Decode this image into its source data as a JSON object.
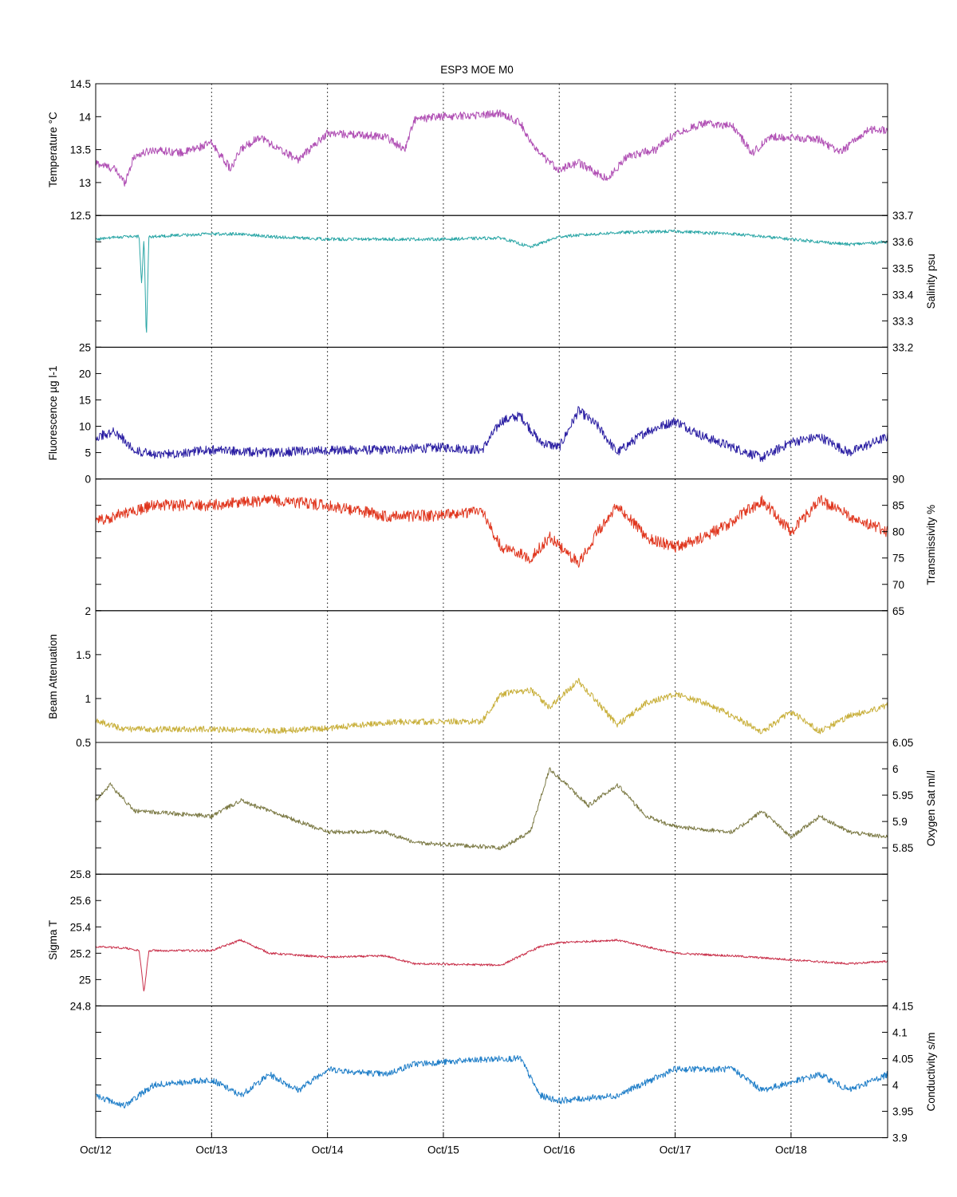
{
  "chart_data": {
    "type": "line",
    "title": "ESP3 MOE   M0",
    "x": {
      "type": "date",
      "range": [
        "2015-10-12",
        "2015-10-18T20:00"
      ],
      "ticks": [
        "2015-10-12",
        "2015-10-13",
        "2015-10-14",
        "2015-10-15",
        "2015-10-16",
        "2015-10-17",
        "2015-10-18"
      ],
      "tick_labels": [
        "Oct/12",
        "Oct/13",
        "Oct/14",
        "Oct/15",
        "Oct/16",
        "Oct/17",
        "Oct/18"
      ],
      "grid": "vertical dotted at each day"
    },
    "panels": [
      {
        "ylabel": "Temperature °C",
        "axis_side": "left",
        "color": "#b04fb4",
        "ylim": [
          12.5,
          14.5
        ],
        "ytick_values": [
          12.5,
          13,
          13.5,
          14,
          14.5
        ],
        "ytick_labels": [
          "12.5",
          "13",
          "13.5",
          "14",
          "14.5"
        ],
        "noise": 0.06,
        "points": [
          [
            "2015-10-12T00:00",
            13.3
          ],
          [
            "2015-10-12T04:00",
            13.2
          ],
          [
            "2015-10-12T06:00",
            13.0
          ],
          [
            "2015-10-12T08:00",
            13.4
          ],
          [
            "2015-10-12T12:00",
            13.5
          ],
          [
            "2015-10-12T18:00",
            13.45
          ],
          [
            "2015-10-13T00:00",
            13.6
          ],
          [
            "2015-10-13T04:00",
            13.2
          ],
          [
            "2015-10-13T06:00",
            13.5
          ],
          [
            "2015-10-13T10:00",
            13.7
          ],
          [
            "2015-10-13T14:00",
            13.5
          ],
          [
            "2015-10-13T18:00",
            13.35
          ],
          [
            "2015-10-14T00:00",
            13.75
          ],
          [
            "2015-10-14T12:00",
            13.7
          ],
          [
            "2015-10-14T16:00",
            13.5
          ],
          [
            "2015-10-14T18:00",
            13.95
          ],
          [
            "2015-10-14T23:00",
            14.0
          ],
          [
            "2015-10-15T06:00",
            14.02
          ],
          [
            "2015-10-15T12:00",
            14.05
          ],
          [
            "2015-10-15T16:00",
            13.9
          ],
          [
            "2015-10-15T19:00",
            13.5
          ],
          [
            "2015-10-15T22:00",
            13.3
          ],
          [
            "2015-10-16T00:00",
            13.2
          ],
          [
            "2015-10-16T04:00",
            13.3
          ],
          [
            "2015-10-16T10:00",
            13.05
          ],
          [
            "2015-10-16T14:00",
            13.4
          ],
          [
            "2015-10-16T20:00",
            13.5
          ],
          [
            "2015-10-17T00:00",
            13.75
          ],
          [
            "2015-10-17T06:00",
            13.9
          ],
          [
            "2015-10-17T12:00",
            13.85
          ],
          [
            "2015-10-17T16:00",
            13.45
          ],
          [
            "2015-10-17T20:00",
            13.7
          ],
          [
            "2015-10-18T06:00",
            13.65
          ],
          [
            "2015-10-18T10:00",
            13.45
          ],
          [
            "2015-10-18T16:00",
            13.8
          ],
          [
            "2015-10-18T20:00",
            13.8
          ]
        ]
      },
      {
        "ylabel": "Salinity psu",
        "axis_side": "right",
        "color": "#2aa6a6",
        "ylim": [
          33.2,
          33.7
        ],
        "ytick_values": [
          33.2,
          33.3,
          33.4,
          33.5,
          33.6,
          33.7
        ],
        "ytick_labels": [
          "33.2",
          "33.3",
          "33.4",
          "33.5",
          "33.6",
          "33.7"
        ],
        "noise": 0.006,
        "points": [
          [
            "2015-10-12T00:00",
            33.61
          ],
          [
            "2015-10-12T06:00",
            33.62
          ],
          [
            "2015-10-12T09:00",
            33.62
          ],
          [
            "2015-10-12T09:30",
            33.44
          ],
          [
            "2015-10-12T10:00",
            33.62
          ],
          [
            "2015-10-12T10:30",
            33.22
          ],
          [
            "2015-10-12T11:00",
            33.62
          ],
          [
            "2015-10-12T18:00",
            33.625
          ],
          [
            "2015-10-13T00:00",
            33.63
          ],
          [
            "2015-10-13T06:00",
            33.63
          ],
          [
            "2015-10-13T12:00",
            33.62
          ],
          [
            "2015-10-14T00:00",
            33.61
          ],
          [
            "2015-10-14T12:00",
            33.61
          ],
          [
            "2015-10-15T00:00",
            33.61
          ],
          [
            "2015-10-15T12:00",
            33.615
          ],
          [
            "2015-10-15T18:00",
            33.58
          ],
          [
            "2015-10-16T00:00",
            33.62
          ],
          [
            "2015-10-16T12:00",
            33.635
          ],
          [
            "2015-10-17T00:00",
            33.64
          ],
          [
            "2015-10-17T12:00",
            33.63
          ],
          [
            "2015-10-18T00:00",
            33.61
          ],
          [
            "2015-10-18T12:00",
            33.59
          ],
          [
            "2015-10-18T20:00",
            33.6
          ]
        ]
      },
      {
        "ylabel": "Fluorescence µg l-1",
        "axis_side": "left",
        "color": "#2b1fa3",
        "ylim": [
          0,
          25
        ],
        "ytick_values": [
          0,
          5,
          10,
          15,
          20,
          25
        ],
        "ytick_labels": [
          "0",
          "5",
          "10",
          "15",
          "20",
          "25"
        ],
        "noise": 0.9,
        "points": [
          [
            "2015-10-12T00:00",
            8
          ],
          [
            "2015-10-12T04:00",
            9
          ],
          [
            "2015-10-12T08:00",
            5.5
          ],
          [
            "2015-10-12T12:00",
            4.5
          ],
          [
            "2015-10-13T00:00",
            5.5
          ],
          [
            "2015-10-13T12:00",
            5
          ],
          [
            "2015-10-14T00:00",
            5.5
          ],
          [
            "2015-10-14T12:00",
            5.5
          ],
          [
            "2015-10-15T00:00",
            6
          ],
          [
            "2015-10-15T08:00",
            5.5
          ],
          [
            "2015-10-15T12:00",
            11
          ],
          [
            "2015-10-15T16:00",
            12
          ],
          [
            "2015-10-15T20:00",
            7
          ],
          [
            "2015-10-16T00:00",
            6
          ],
          [
            "2015-10-16T04:00",
            13
          ],
          [
            "2015-10-16T08:00",
            10
          ],
          [
            "2015-10-16T12:00",
            5
          ],
          [
            "2015-10-16T18:00",
            9
          ],
          [
            "2015-10-17T00:00",
            11
          ],
          [
            "2015-10-17T06:00",
            8
          ],
          [
            "2015-10-17T12:00",
            6
          ],
          [
            "2015-10-17T18:00",
            4
          ],
          [
            "2015-10-18T00:00",
            7
          ],
          [
            "2015-10-18T06:00",
            8
          ],
          [
            "2015-10-18T12:00",
            5
          ],
          [
            "2015-10-18T20:00",
            8
          ]
        ]
      },
      {
        "ylabel": "Transmissivity %",
        "axis_side": "right",
        "color": "#e0361e",
        "ylim": [
          65,
          90
        ],
        "ytick_values": [
          65,
          70,
          75,
          80,
          85,
          90
        ],
        "ytick_labels": [
          "65",
          "70",
          "75",
          "80",
          "85",
          "90"
        ],
        "noise": 1.1,
        "points": [
          [
            "2015-10-12T00:00",
            82
          ],
          [
            "2015-10-12T12:00",
            85
          ],
          [
            "2015-10-13T00:00",
            85
          ],
          [
            "2015-10-13T12:00",
            86
          ],
          [
            "2015-10-14T00:00",
            85
          ],
          [
            "2015-10-14T12:00",
            83
          ],
          [
            "2015-10-15T00:00",
            83
          ],
          [
            "2015-10-15T08:00",
            84
          ],
          [
            "2015-10-15T12:00",
            77
          ],
          [
            "2015-10-15T18:00",
            75
          ],
          [
            "2015-10-15T22:00",
            79
          ],
          [
            "2015-10-16T04:00",
            74
          ],
          [
            "2015-10-16T08:00",
            80
          ],
          [
            "2015-10-16T12:00",
            85
          ],
          [
            "2015-10-16T18:00",
            79
          ],
          [
            "2015-10-17T00:00",
            77
          ],
          [
            "2015-10-17T06:00",
            79
          ],
          [
            "2015-10-17T12:00",
            82
          ],
          [
            "2015-10-17T18:00",
            86
          ],
          [
            "2015-10-18T00:00",
            80
          ],
          [
            "2015-10-18T06:00",
            86
          ],
          [
            "2015-10-18T12:00",
            83
          ],
          [
            "2015-10-18T20:00",
            80
          ]
        ]
      },
      {
        "ylabel": "Beam Attenuation",
        "axis_side": "left",
        "color": "#c9b03c",
        "ylim": [
          0.5,
          2
        ],
        "ytick_values": [
          0.5,
          1,
          1.5,
          2
        ],
        "ytick_labels": [
          "0.5",
          "1",
          "1.5",
          "2"
        ],
        "noise": 0.035,
        "points": [
          [
            "2015-10-12T00:00",
            0.75
          ],
          [
            "2015-10-12T06:00",
            0.65
          ],
          [
            "2015-10-13T00:00",
            0.65
          ],
          [
            "2015-10-13T12:00",
            0.63
          ],
          [
            "2015-10-14T00:00",
            0.66
          ],
          [
            "2015-10-14T12:00",
            0.73
          ],
          [
            "2015-10-15T00:00",
            0.74
          ],
          [
            "2015-10-15T08:00",
            0.74
          ],
          [
            "2015-10-15T12:00",
            1.05
          ],
          [
            "2015-10-15T18:00",
            1.1
          ],
          [
            "2015-10-15T22:00",
            0.9
          ],
          [
            "2015-10-16T04:00",
            1.2
          ],
          [
            "2015-10-16T08:00",
            0.95
          ],
          [
            "2015-10-16T12:00",
            0.7
          ],
          [
            "2015-10-16T18:00",
            0.95
          ],
          [
            "2015-10-17T00:00",
            1.05
          ],
          [
            "2015-10-17T06:00",
            0.95
          ],
          [
            "2015-10-17T12:00",
            0.8
          ],
          [
            "2015-10-17T18:00",
            0.62
          ],
          [
            "2015-10-18T00:00",
            0.85
          ],
          [
            "2015-10-18T06:00",
            0.62
          ],
          [
            "2015-10-18T12:00",
            0.8
          ],
          [
            "2015-10-18T20:00",
            0.92
          ]
        ]
      },
      {
        "ylabel": "Oxygen Sat ml/l",
        "axis_side": "right",
        "color": "#7c7a45",
        "ylim": [
          5.8,
          6.05
        ],
        "ytick_values": [
          5.85,
          5.9,
          5.95,
          6,
          6.05
        ],
        "ytick_labels": [
          "5.85",
          "5.9",
          "5.95",
          "6",
          "6.05"
        ],
        "noise": 0.004,
        "points": [
          [
            "2015-10-12T00:00",
            5.94
          ],
          [
            "2015-10-12T03:00",
            5.97
          ],
          [
            "2015-10-12T08:00",
            5.92
          ],
          [
            "2015-10-13T00:00",
            5.91
          ],
          [
            "2015-10-13T06:00",
            5.94
          ],
          [
            "2015-10-13T12:00",
            5.92
          ],
          [
            "2015-10-14T00:00",
            5.88
          ],
          [
            "2015-10-14T12:00",
            5.88
          ],
          [
            "2015-10-14T18:00",
            5.86
          ],
          [
            "2015-10-15T12:00",
            5.85
          ],
          [
            "2015-10-15T18:00",
            5.88
          ],
          [
            "2015-10-15T22:00",
            6.0
          ],
          [
            "2015-10-16T06:00",
            5.93
          ],
          [
            "2015-10-16T12:00",
            5.97
          ],
          [
            "2015-10-16T18:00",
            5.91
          ],
          [
            "2015-10-17T00:00",
            5.89
          ],
          [
            "2015-10-17T12:00",
            5.88
          ],
          [
            "2015-10-17T18:00",
            5.92
          ],
          [
            "2015-10-18T00:00",
            5.87
          ],
          [
            "2015-10-18T06:00",
            5.91
          ],
          [
            "2015-10-18T12:00",
            5.88
          ],
          [
            "2015-10-18T20:00",
            5.87
          ]
        ]
      },
      {
        "ylabel": "Sigma T",
        "axis_side": "left",
        "color": "#c9304a",
        "ylim": [
          24.8,
          25.8
        ],
        "ytick_values": [
          24.8,
          25,
          25.2,
          25.4,
          25.6,
          25.8
        ],
        "ytick_labels": [
          "24.8",
          "25",
          "25.2",
          "25.4",
          "25.6",
          "25.8"
        ],
        "noise": 0.008,
        "points": [
          [
            "2015-10-12T00:00",
            25.25
          ],
          [
            "2015-10-12T06:00",
            25.24
          ],
          [
            "2015-10-12T09:00",
            25.22
          ],
          [
            "2015-10-12T10:00",
            24.9
          ],
          [
            "2015-10-12T11:00",
            25.22
          ],
          [
            "2015-10-13T00:00",
            25.22
          ],
          [
            "2015-10-13T06:00",
            25.3
          ],
          [
            "2015-10-13T12:00",
            25.2
          ],
          [
            "2015-10-14T00:00",
            25.17
          ],
          [
            "2015-10-14T12:00",
            25.18
          ],
          [
            "2015-10-14T18:00",
            25.12
          ],
          [
            "2015-10-15T12:00",
            25.11
          ],
          [
            "2015-10-15T20:00",
            25.25
          ],
          [
            "2015-10-16T00:00",
            25.28
          ],
          [
            "2015-10-16T12:00",
            25.3
          ],
          [
            "2015-10-17T00:00",
            25.2
          ],
          [
            "2015-10-17T12:00",
            25.18
          ],
          [
            "2015-10-18T00:00",
            25.15
          ],
          [
            "2015-10-18T12:00",
            25.12
          ],
          [
            "2015-10-18T20:00",
            25.14
          ]
        ]
      },
      {
        "ylabel": "Conductivity s/m",
        "axis_side": "right",
        "color": "#1f7ec8",
        "ylim": [
          3.9,
          4.15
        ],
        "ytick_values": [
          3.9,
          3.95,
          4,
          4.05,
          4.1,
          4.15
        ],
        "ytick_labels": [
          "3.9",
          "3.95",
          "4",
          "4.05",
          "4.1",
          "4.15"
        ],
        "noise": 0.006,
        "points": [
          [
            "2015-10-12T00:00",
            3.98
          ],
          [
            "2015-10-12T06:00",
            3.96
          ],
          [
            "2015-10-12T12:00",
            4.0
          ],
          [
            "2015-10-13T00:00",
            4.01
          ],
          [
            "2015-10-13T06:00",
            3.98
          ],
          [
            "2015-10-13T12:00",
            4.02
          ],
          [
            "2015-10-13T18:00",
            3.99
          ],
          [
            "2015-10-14T00:00",
            4.03
          ],
          [
            "2015-10-14T12:00",
            4.02
          ],
          [
            "2015-10-14T18:00",
            4.04
          ],
          [
            "2015-10-15T12:00",
            4.05
          ],
          [
            "2015-10-15T16:00",
            4.05
          ],
          [
            "2015-10-15T20:00",
            3.98
          ],
          [
            "2015-10-16T00:00",
            3.97
          ],
          [
            "2015-10-16T12:00",
            3.98
          ],
          [
            "2015-10-17T00:00",
            4.03
          ],
          [
            "2015-10-17T12:00",
            4.03
          ],
          [
            "2015-10-17T18:00",
            3.99
          ],
          [
            "2015-10-18T06:00",
            4.02
          ],
          [
            "2015-10-18T12:00",
            3.99
          ],
          [
            "2015-10-18T20:00",
            4.02
          ]
        ]
      }
    ]
  }
}
